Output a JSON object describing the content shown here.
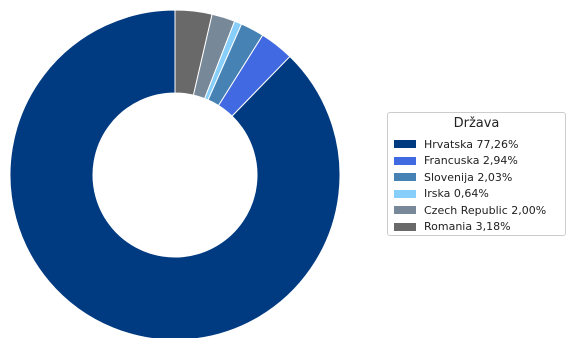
{
  "chart_data": {
    "type": "pie",
    "variant": "donut",
    "legend": {
      "title": "Država",
      "placement": "right"
    },
    "slices": [
      {
        "label": "Hrvatska",
        "value": 77.26,
        "display": "77,26%",
        "color": "#003a80"
      },
      {
        "label": "Francuska",
        "value": 2.94,
        "display": "2,94%",
        "color": "#4169e1"
      },
      {
        "label": "Slovenija",
        "value": 2.03,
        "display": "2,03%",
        "color": "#4682b4"
      },
      {
        "label": "Irska",
        "value": 0.64,
        "display": "0,64%",
        "color": "#87cefa"
      },
      {
        "label": "Czech Republic",
        "value": 2.0,
        "display": "2,00%",
        "color": "#778899"
      },
      {
        "label": "Romania",
        "value": 3.18,
        "display": "3,18%",
        "color": "#696969"
      }
    ]
  }
}
